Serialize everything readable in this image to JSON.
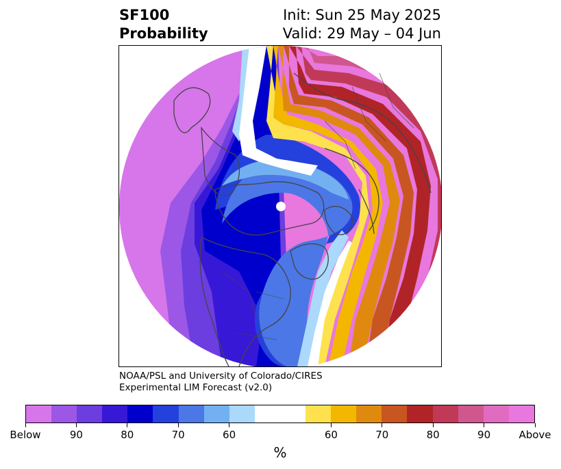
{
  "title": {
    "left_line1": "SF100",
    "left_line2": "Probability",
    "right_line1": "Init: Sun 25 May 2025",
    "right_line2": "Valid: 29 May – 04 Jun"
  },
  "credit": {
    "line1": "NOAA/PSL and University of Colorado/CIRES",
    "line2": "Experimental LIM Forecast (v2.0)"
  },
  "colorbar": {
    "unit": "%",
    "swatches": [
      {
        "name": "below-extreme",
        "color": "#d676ea"
      },
      {
        "name": "below-90",
        "color": "#9c57e6"
      },
      {
        "name": "below-85",
        "color": "#6c3ddf"
      },
      {
        "name": "below-80",
        "color": "#3818d7"
      },
      {
        "name": "below-75",
        "color": "#0000cc"
      },
      {
        "name": "below-70",
        "color": "#2541dd"
      },
      {
        "name": "below-65",
        "color": "#4c77e6"
      },
      {
        "name": "below-60",
        "color": "#73b0f1"
      },
      {
        "name": "below-55",
        "color": "#aad9fb"
      },
      {
        "name": "neutral",
        "color": "#ffffff",
        "wide": true
      },
      {
        "name": "above-55",
        "color": "#fde24d"
      },
      {
        "name": "above-60",
        "color": "#f3b700"
      },
      {
        "name": "above-65",
        "color": "#df8a0e"
      },
      {
        "name": "above-70",
        "color": "#c85620"
      },
      {
        "name": "above-75",
        "color": "#b02428"
      },
      {
        "name": "above-80",
        "color": "#c03a57"
      },
      {
        "name": "above-85",
        "color": "#d0568e"
      },
      {
        "name": "above-90",
        "color": "#e06bc0"
      },
      {
        "name": "above-extreme",
        "color": "#e877de"
      }
    ],
    "tick_labels": [
      "Below",
      "90",
      "80",
      "70",
      "60",
      "60",
      "70",
      "80",
      "90",
      "Above"
    ]
  },
  "map": {
    "projection": "north-polar-stereographic",
    "colors": {
      "land_outline": "#444444",
      "pole_marker": "#ffffff"
    }
  }
}
